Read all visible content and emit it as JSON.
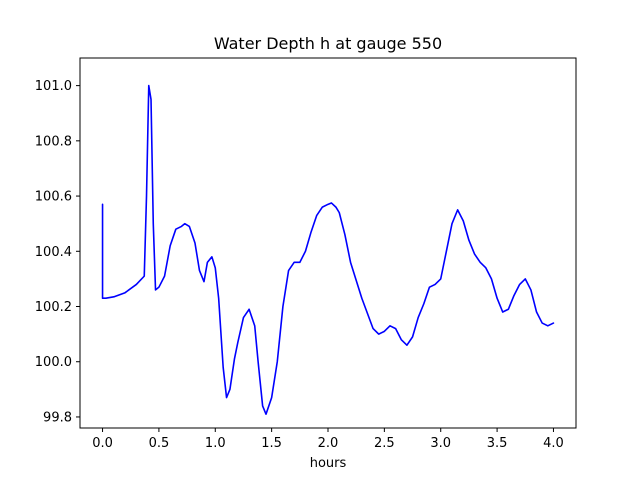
{
  "chart_data": {
    "type": "line",
    "title": "Water Depth h at gauge 550",
    "xlabel": "hours",
    "ylabel": "",
    "xlim": [
      -0.2,
      4.2
    ],
    "ylim": [
      99.76,
      101.1
    ],
    "xticks": [
      0.0,
      0.5,
      1.0,
      1.5,
      2.0,
      2.5,
      3.0,
      3.5,
      4.0
    ],
    "xtick_labels": [
      "0.0",
      "0.5",
      "1.0",
      "1.5",
      "2.0",
      "2.5",
      "3.0",
      "3.5",
      "4.0"
    ],
    "yticks": [
      99.8,
      100.0,
      100.2,
      100.4,
      100.6,
      100.8,
      101.0
    ],
    "ytick_labels": [
      "99.8",
      "100.0",
      "100.2",
      "100.4",
      "100.6",
      "100.8",
      "101.0"
    ],
    "grid": false,
    "legend": "none",
    "series": [
      {
        "color": "#0000ff",
        "x": [
          0.0,
          0.0,
          0.03,
          0.1,
          0.2,
          0.3,
          0.37,
          0.39,
          0.41,
          0.43,
          0.45,
          0.47,
          0.5,
          0.55,
          0.6,
          0.65,
          0.7,
          0.73,
          0.77,
          0.82,
          0.86,
          0.9,
          0.93,
          0.97,
          1.0,
          1.03,
          1.07,
          1.1,
          1.13,
          1.17,
          1.2,
          1.25,
          1.3,
          1.35,
          1.38,
          1.42,
          1.45,
          1.5,
          1.55,
          1.6,
          1.65,
          1.7,
          1.75,
          1.8,
          1.85,
          1.9,
          1.95,
          2.0,
          2.03,
          2.07,
          2.1,
          2.15,
          2.2,
          2.3,
          2.4,
          2.45,
          2.5,
          2.55,
          2.6,
          2.65,
          2.7,
          2.75,
          2.8,
          2.85,
          2.9,
          2.95,
          3.0,
          3.05,
          3.1,
          3.15,
          3.2,
          3.25,
          3.3,
          3.35,
          3.4,
          3.45,
          3.5,
          3.55,
          3.6,
          3.65,
          3.7,
          3.75,
          3.8,
          3.85,
          3.9,
          3.95,
          4.0
        ],
        "y": [
          100.57,
          100.23,
          100.23,
          100.235,
          100.25,
          100.28,
          100.31,
          100.6,
          101.0,
          100.95,
          100.5,
          100.26,
          100.27,
          100.31,
          100.42,
          100.48,
          100.49,
          100.5,
          100.49,
          100.43,
          100.33,
          100.29,
          100.36,
          100.38,
          100.34,
          100.23,
          99.98,
          99.87,
          99.9,
          100.01,
          100.07,
          100.16,
          100.19,
          100.13,
          100.0,
          99.84,
          99.81,
          99.87,
          100.0,
          100.2,
          100.33,
          100.36,
          100.36,
          100.4,
          100.47,
          100.53,
          100.56,
          100.57,
          100.575,
          100.56,
          100.54,
          100.46,
          100.36,
          100.23,
          100.12,
          100.1,
          100.11,
          100.13,
          100.12,
          100.08,
          100.06,
          100.09,
          100.16,
          100.21,
          100.27,
          100.28,
          100.3,
          100.4,
          100.5,
          100.55,
          100.51,
          100.44,
          100.39,
          100.36,
          100.34,
          100.3,
          100.23,
          100.18,
          100.19,
          100.24,
          100.28,
          100.3,
          100.26,
          100.18,
          100.14,
          100.13,
          100.14
        ]
      }
    ]
  }
}
